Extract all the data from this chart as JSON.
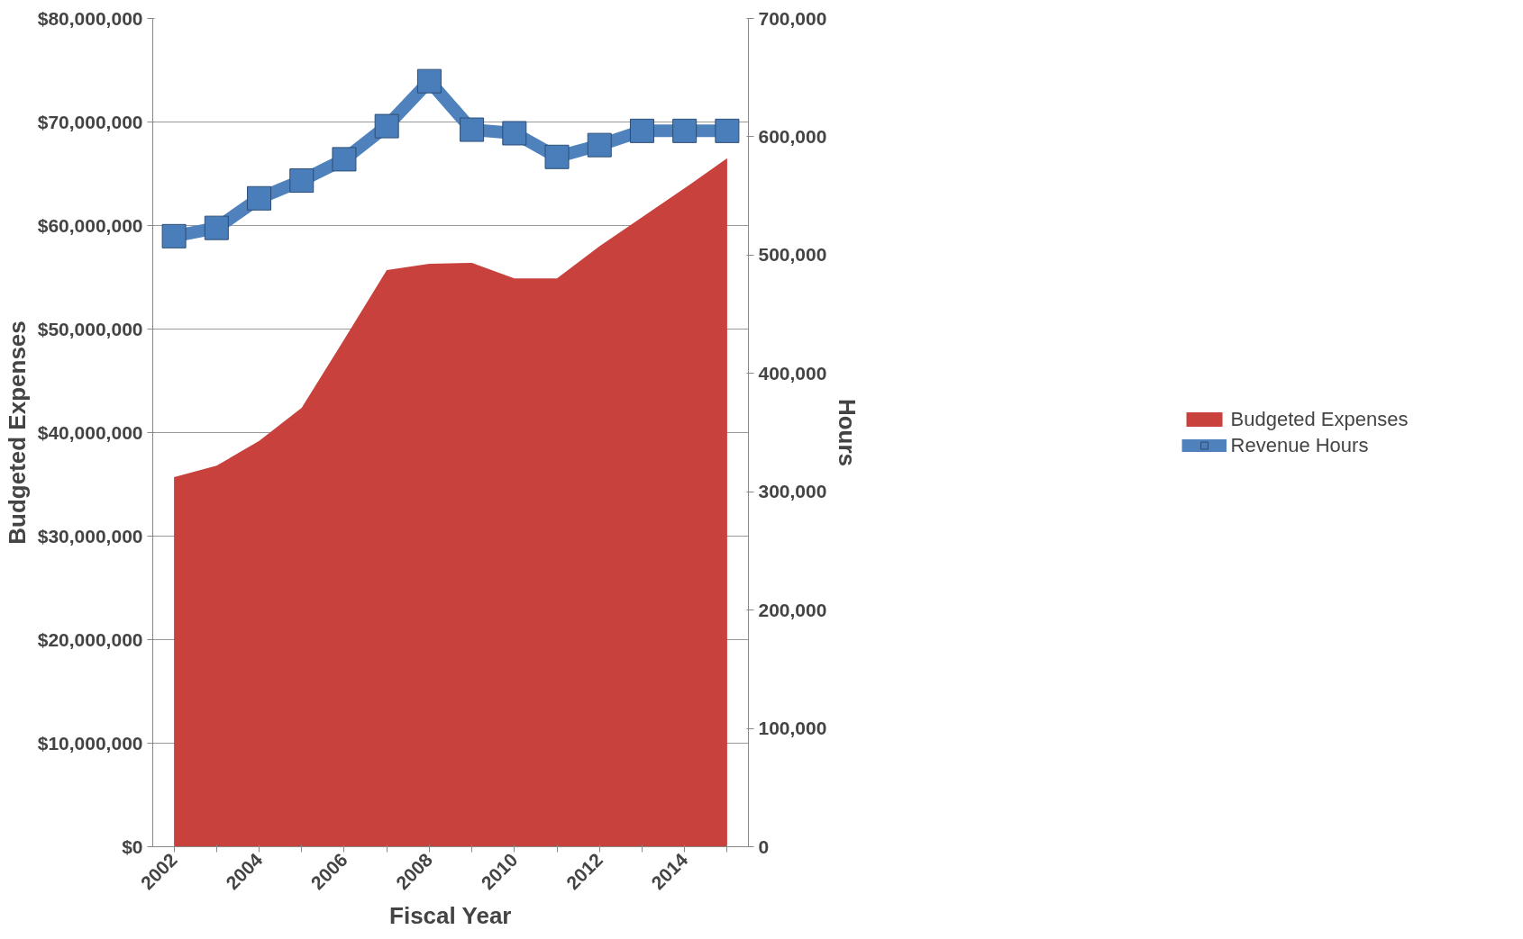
{
  "chart_data": {
    "type": "area",
    "xlabel": "Fiscal Year",
    "ylabel": "Budgeted Expenses",
    "y2label": "Hours",
    "categories": [
      "2002",
      null,
      "2004",
      null,
      "2006",
      null,
      "2008",
      null,
      "2010",
      null,
      "2012",
      null,
      "2014",
      null
    ],
    "series": [
      {
        "name": "Budgeted Expenses",
        "color": "#c8413c",
        "values": [
          35700000,
          36800000,
          39200000,
          42400000,
          49000000,
          55700000,
          56300000,
          56400000,
          54900000,
          54900000,
          58000000,
          60800000,
          63600000,
          66500000
        ]
      },
      {
        "name": "Revenue Hours",
        "type": "line",
        "axis": "y2",
        "color": "#4f81bd",
        "marker": "square",
        "values": [
          516000,
          523000,
          548000,
          563000,
          581000,
          609000,
          647000,
          606000,
          603000,
          583000,
          593000,
          605000,
          605000,
          605000
        ]
      }
    ],
    "ylim": [
      0,
      80000000
    ],
    "yticks": [
      {
        "value": 0,
        "label": "$0"
      },
      {
        "value": 10000000,
        "label": "$10,000,000"
      },
      {
        "value": 20000000,
        "label": "$20,000,000"
      },
      {
        "value": 30000000,
        "label": "$30,000,000"
      },
      {
        "value": 40000000,
        "label": "$40,000,000"
      },
      {
        "value": 50000000,
        "label": "$50,000,000"
      },
      {
        "value": 60000000,
        "label": "$60,000,000"
      },
      {
        "value": 70000000,
        "label": "$70,000,000"
      },
      {
        "value": 80000000,
        "label": "$80,000,000"
      }
    ],
    "y2lim": [
      0,
      700000
    ],
    "y2ticks": [
      {
        "value": 0,
        "label": "0"
      },
      {
        "value": 100000,
        "label": "100,000"
      },
      {
        "value": 200000,
        "label": "200,000"
      },
      {
        "value": 300000,
        "label": "300,000"
      },
      {
        "value": 400000,
        "label": "400,000"
      },
      {
        "value": 500000,
        "label": "500,000"
      },
      {
        "value": 600000,
        "label": "600,000"
      },
      {
        "value": 700000,
        "label": "700,000"
      }
    ],
    "grid": "y",
    "legend": "right"
  }
}
